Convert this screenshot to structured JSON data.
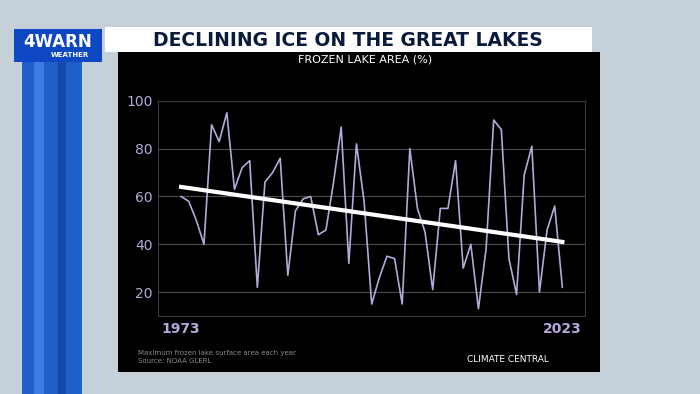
{
  "chart_data": {
    "type": "line",
    "title": "DECLINING ICE ON THE GREAT LAKES",
    "subtitle": "FROZEN LAKE AREA (%)",
    "logo": "4WARN",
    "logo_tagline": "WEATHER",
    "notes": [
      "Maximum frozen lake surface area each year",
      "Source: NOAA GLERL"
    ],
    "credit": "CLIMATE CENTRAL",
    "x": [
      1973,
      1974,
      1975,
      1976,
      1977,
      1978,
      1979,
      1980,
      1981,
      1982,
      1983,
      1984,
      1985,
      1986,
      1987,
      1988,
      1989,
      1990,
      1991,
      1992,
      1993,
      1994,
      1995,
      1996,
      1997,
      1998,
      1999,
      2000,
      2001,
      2002,
      2003,
      2004,
      2005,
      2006,
      2007,
      2008,
      2009,
      2010,
      2011,
      2012,
      2013,
      2014,
      2015,
      2016,
      2017,
      2018,
      2019,
      2020,
      2021,
      2022,
      2023
    ],
    "series": [
      {
        "color": "#b7a8dc",
        "values": [
          60,
          58,
          50,
          40,
          90,
          83,
          95,
          63,
          72,
          75,
          22,
          66,
          70,
          76,
          27,
          54,
          59,
          60,
          44,
          46,
          66,
          89,
          32,
          82,
          58,
          15,
          26,
          35,
          34,
          15,
          80,
          55,
          45,
          21,
          55,
          55,
          75,
          30,
          40,
          13,
          38,
          92,
          88,
          34,
          19,
          69,
          81,
          20,
          46,
          56,
          22
        ]
      }
    ],
    "trend": {
      "x": [
        1973,
        2023
      ],
      "values": [
        64,
        41
      ],
      "color": "#ffffff"
    },
    "xlim": [
      1970,
      2026
    ],
    "xticks": [
      1973,
      2023
    ],
    "ylim": [
      10,
      100
    ],
    "yticks": [
      20,
      40,
      60,
      80,
      100
    ],
    "grid": true
  }
}
